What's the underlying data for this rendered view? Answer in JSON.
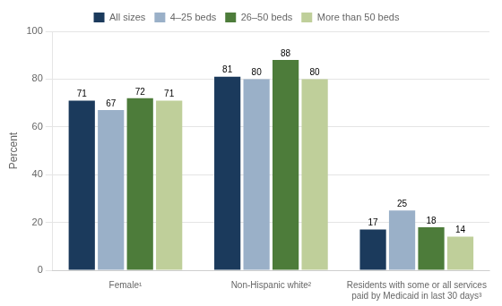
{
  "chart_data": {
    "type": "bar",
    "categories": [
      "Female¹",
      "Non-Hispanic white²",
      "Residents with some or all services\npaid by Medicaid in last 30 days³"
    ],
    "series": [
      {
        "name": "All sizes",
        "color": "#1b3a5c",
        "values": [
          71,
          81,
          17
        ]
      },
      {
        "name": "4–25 beds",
        "color": "#9ab0c8",
        "values": [
          67,
          80,
          25
        ]
      },
      {
        "name": "26–50 beds",
        "color": "#4d7c3a",
        "values": [
          72,
          88,
          18
        ]
      },
      {
        "name": "More than 50 beds",
        "color": "#bfcf9a",
        "values": [
          71,
          80,
          14
        ]
      }
    ],
    "ylabel": "Percent",
    "ylim": [
      0,
      100
    ],
    "yticks": [
      0,
      20,
      40,
      60,
      80,
      100
    ],
    "grid": "y",
    "legend": "top",
    "data_labels": true
  }
}
